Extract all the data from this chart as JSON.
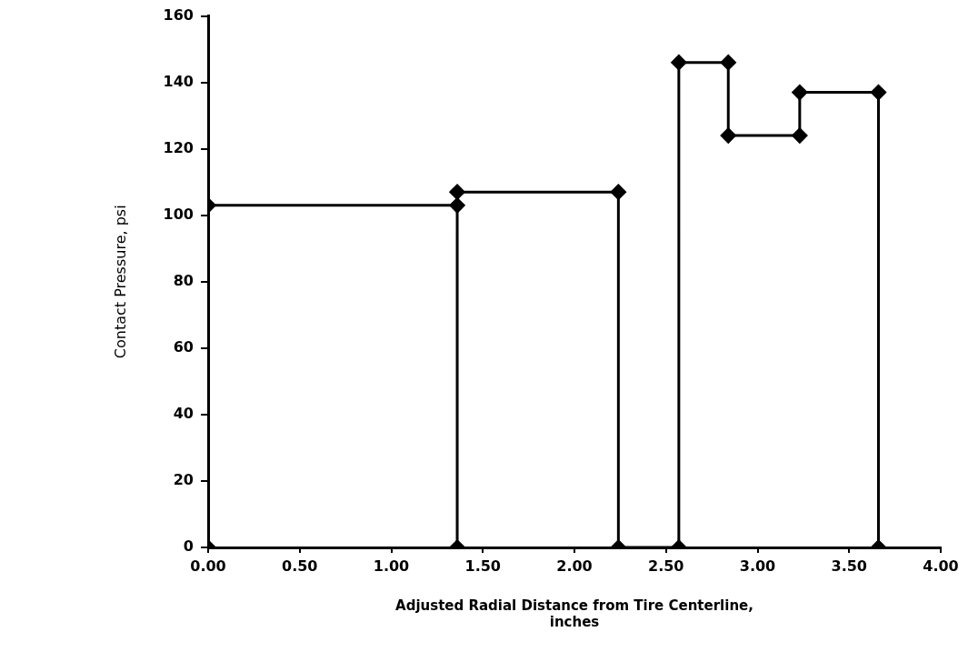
{
  "chart_data": {
    "type": "line",
    "xlabel": "Adjusted Radial Distance from Tire Centerline, inches",
    "ylabel": "Contact Pressure, psi",
    "series": [
      {
        "color": "#000000",
        "x": [
          0,
          0,
          1.36,
          1.36,
          1.36,
          2.24,
          2.24,
          2.57,
          2.57,
          2.84,
          2.84,
          3.23,
          3.23,
          3.66,
          3.66
        ],
        "values": [
          0,
          103,
          103,
          0,
          107,
          107,
          0,
          0,
          146,
          146,
          124,
          124,
          137,
          137,
          0
        ]
      }
    ],
    "xlim": [
      0,
      4
    ],
    "xticks": [
      {
        "value": 0,
        "label": "0.00"
      },
      {
        "value": 0.5,
        "label": "0.50"
      },
      {
        "value": 1,
        "label": "1.00"
      },
      {
        "value": 1.5,
        "label": "1.50"
      },
      {
        "value": 2,
        "label": "2.00"
      },
      {
        "value": 2.5,
        "label": "2.50"
      },
      {
        "value": 3,
        "label": "3.00"
      },
      {
        "value": 3.5,
        "label": "3.50"
      },
      {
        "value": 4,
        "label": "4.00"
      }
    ],
    "ylim": [
      0,
      160
    ],
    "yticks": [
      0,
      20,
      40,
      60,
      80,
      100,
      120,
      140,
      160
    ],
    "grid": false,
    "legend": false,
    "marker": "diamond",
    "line_style": "solid"
  }
}
